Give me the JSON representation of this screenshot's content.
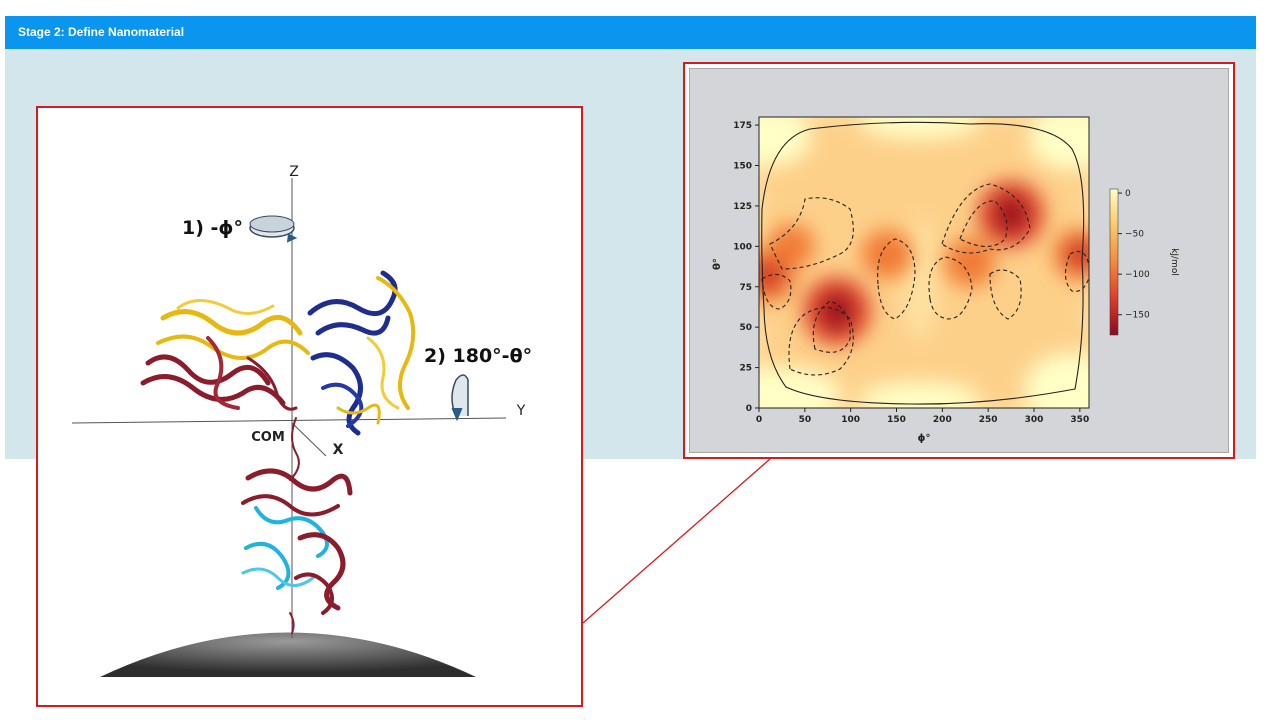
{
  "header": {
    "title": "Stage 2: Define Nanomaterial"
  },
  "structure_figure": {
    "axis_z": "Z",
    "axis_y": "Y",
    "axis_x": "X",
    "com_label": "COM",
    "rotation_1": "1) -ϕ°",
    "rotation_2": "2) 180°-θ°"
  },
  "chart_data": {
    "type": "heatmap",
    "xlabel": "ϕ°",
    "ylabel": "θ°",
    "xlim": [
      0,
      360
    ],
    "ylim": [
      0,
      180
    ],
    "x_ticks": [
      "0",
      "50",
      "100",
      "150",
      "200",
      "250",
      "300",
      "350"
    ],
    "y_ticks": [
      "0",
      "25",
      "50",
      "75",
      "100",
      "125",
      "150",
      "175"
    ],
    "colorbar": {
      "label": "kJ/mol",
      "ticks": [
        "0",
        "−50",
        "−100",
        "−150"
      ],
      "range": [
        -175,
        5
      ]
    },
    "hotspots": [
      {
        "phi": 85,
        "theta": 60,
        "energy": -175
      },
      {
        "phi": 275,
        "theta": 120,
        "energy": -170
      },
      {
        "phi": 10,
        "theta": 82,
        "energy": -120
      },
      {
        "phi": 350,
        "theta": 95,
        "energy": -110
      },
      {
        "phi": 140,
        "theta": 95,
        "energy": -100
      },
      {
        "phi": 230,
        "theta": 90,
        "energy": -100
      },
      {
        "phi": 35,
        "theta": 100,
        "energy": -80
      }
    ]
  }
}
